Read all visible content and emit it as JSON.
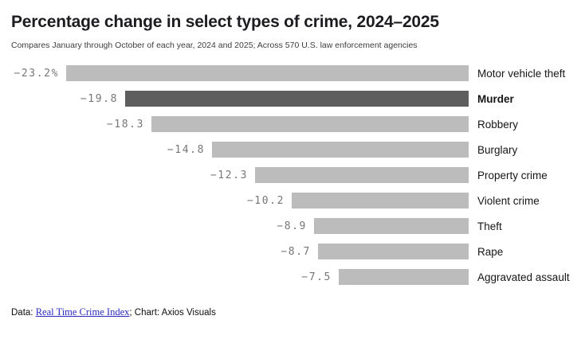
{
  "chart_data": {
    "type": "bar",
    "orientation": "horizontal",
    "title": "Percentage change in select types of crime, 2024–2025",
    "subtitle": "Compares January through October of each year, 2024 and 2025; Across 570 U.S. law enforcement agencies",
    "categories": [
      "Motor vehicle theft",
      "Murder",
      "Robbery",
      "Burglary",
      "Property crime",
      "Violent crime",
      "Theft",
      "Rape",
      "Aggravated assault"
    ],
    "values": [
      -23.2,
      -19.8,
      -18.3,
      -14.8,
      -12.3,
      -10.2,
      -8.9,
      -8.7,
      -7.5
    ],
    "value_labels": [
      "−23.2%",
      "−19.8",
      "−18.3",
      "−14.8",
      "−12.3",
      "−10.2",
      "−8.9",
      "−8.7",
      "−7.5"
    ],
    "highlight_category": "Murder",
    "bar_color": "#bcbcbc",
    "highlight_color": "#5e5e5e",
    "value_label_color": "#767676",
    "xlim": [
      -23.2,
      0
    ],
    "grid": false,
    "legend_position": "none",
    "bars_aligned": "right-edge"
  },
  "footer": {
    "prefix": "Data: ",
    "link_label": "Real Time Crime Index",
    "suffix": "; Chart: Axios Visuals"
  }
}
